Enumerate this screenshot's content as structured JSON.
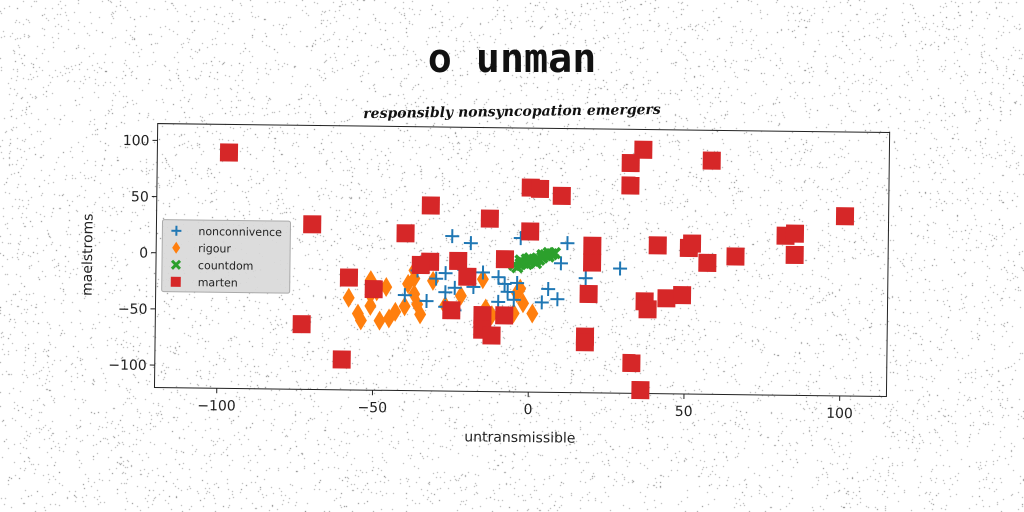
{
  "header": {
    "title": "o unman",
    "subtitle": "responsibly nonsyncopation emergers"
  },
  "chart_data": {
    "type": "scatter",
    "title": "o unman",
    "subtitle": "responsibly nonsyncopation emergers",
    "xlabel": "untransmissible",
    "ylabel": "maelstroms",
    "xlim": [
      -120,
      115
    ],
    "ylim": [
      -120,
      115
    ],
    "xticks": [
      -100,
      -50,
      0,
      50,
      100
    ],
    "yticks": [
      -100,
      -50,
      0,
      50,
      100
    ],
    "xtick_labels": [
      "−100",
      "−50",
      "0",
      "50",
      "100"
    ],
    "ytick_labels": [
      "−100",
      "−50",
      "0",
      "50",
      "100"
    ],
    "grid": false,
    "legend_position": "center-left",
    "series": [
      {
        "name": "nonconnivence",
        "marker": "plus",
        "color": "#1f77b4",
        "points": [
          [
            -30,
            -20
          ],
          [
            -27,
            -15
          ],
          [
            -36,
            -13
          ],
          [
            -40,
            -35
          ],
          [
            -33,
            -40
          ],
          [
            -27,
            -45
          ],
          [
            -24,
            -48
          ],
          [
            -25,
            18
          ],
          [
            -19,
            12
          ],
          [
            -21,
            -12
          ],
          [
            -24,
            -28
          ],
          [
            -27,
            -32
          ],
          [
            -18,
            -27
          ],
          [
            -15,
            -14
          ],
          [
            -10,
            -18
          ],
          [
            -7,
            -31
          ],
          [
            -5,
            -38
          ],
          [
            -4,
            -23
          ],
          [
            -3,
            17
          ],
          [
            -8,
            -24
          ],
          [
            -10,
            -40
          ],
          [
            4,
            -40
          ],
          [
            6,
            -28
          ],
          [
            12,
            13
          ],
          [
            10,
            -5
          ],
          [
            9,
            -37
          ],
          [
            18,
            -18
          ],
          [
            29,
            -9
          ]
        ]
      },
      {
        "name": "rigour",
        "marker": "diamond",
        "color": "#ff7f0e",
        "points": [
          [
            -58,
            -38
          ],
          [
            -55,
            -52
          ],
          [
            -54,
            -58
          ],
          [
            -51,
            -35
          ],
          [
            -51,
            -45
          ],
          [
            -48,
            -58
          ],
          [
            -49,
            -32
          ],
          [
            -51,
            -22
          ],
          [
            -46,
            -28
          ],
          [
            -45,
            -56
          ],
          [
            -43,
            -50
          ],
          [
            -40,
            -45
          ],
          [
            -39,
            -25
          ],
          [
            -37,
            -20
          ],
          [
            -37,
            -34
          ],
          [
            -36,
            -43
          ],
          [
            -35,
            -52
          ],
          [
            -37,
            -13
          ],
          [
            -31,
            -22
          ],
          [
            -27,
            -44
          ],
          [
            -22,
            -35
          ],
          [
            -15,
            -20
          ],
          [
            -14,
            -46
          ],
          [
            -12,
            -52
          ],
          [
            -4,
            -32
          ],
          [
            -3,
            -28
          ],
          [
            -2,
            -41
          ],
          [
            1,
            -50
          ],
          [
            -14,
            -58
          ],
          [
            -5,
            -50
          ]
        ]
      },
      {
        "name": "countdom",
        "marker": "x",
        "color": "#2ca02c",
        "points": [
          [
            -5,
            -7
          ],
          [
            -4,
            -9
          ],
          [
            -3,
            -6
          ],
          [
            -2,
            -5
          ],
          [
            -1,
            -6
          ],
          [
            0,
            -4
          ],
          [
            1,
            -3
          ],
          [
            2,
            -5
          ],
          [
            3,
            -2
          ],
          [
            4,
            0
          ],
          [
            5,
            2
          ],
          [
            6,
            1
          ],
          [
            7,
            3
          ],
          [
            8,
            4
          ],
          [
            0,
            -1
          ],
          [
            2,
            -2
          ],
          [
            4,
            2
          ],
          [
            -3,
            -3
          ],
          [
            6,
            4
          ],
          [
            -1,
            -2
          ]
        ]
      },
      {
        "name": "marten",
        "marker": "square",
        "color": "#d62728",
        "points": [
          [
            -97,
            90
          ],
          [
            -70,
            27
          ],
          [
            -73,
            -62
          ],
          [
            -58,
            -20
          ],
          [
            -60,
            -93
          ],
          [
            -50,
            -30
          ],
          [
            -40,
            20
          ],
          [
            -32,
            45
          ],
          [
            -32,
            -5
          ],
          [
            -35,
            -8
          ],
          [
            -23,
            -4
          ],
          [
            -25,
            -48
          ],
          [
            -20,
            -18
          ],
          [
            -13,
            34
          ],
          [
            -15,
            -52
          ],
          [
            -15,
            -65
          ],
          [
            -12,
            -70
          ],
          [
            -8,
            -52
          ],
          [
            -8,
            -2
          ],
          [
            0,
            62
          ],
          [
            0,
            23
          ],
          [
            3,
            61
          ],
          [
            10,
            55
          ],
          [
            18,
            -70
          ],
          [
            18,
            -75
          ],
          [
            19,
            -32
          ],
          [
            20,
            -4
          ],
          [
            20,
            11
          ],
          [
            32,
            85
          ],
          [
            32,
            65
          ],
          [
            33,
            -93
          ],
          [
            36,
            -117
          ],
          [
            36,
            97
          ],
          [
            37,
            -38
          ],
          [
            38,
            -45
          ],
          [
            41,
            12
          ],
          [
            44,
            -35
          ],
          [
            49,
            -32
          ],
          [
            51,
            10
          ],
          [
            52,
            14
          ],
          [
            57,
            -3
          ],
          [
            58,
            88
          ],
          [
            66,
            3
          ],
          [
            82,
            22
          ],
          [
            85,
            5
          ],
          [
            85,
            24
          ],
          [
            101,
            40
          ]
        ]
      }
    ]
  }
}
